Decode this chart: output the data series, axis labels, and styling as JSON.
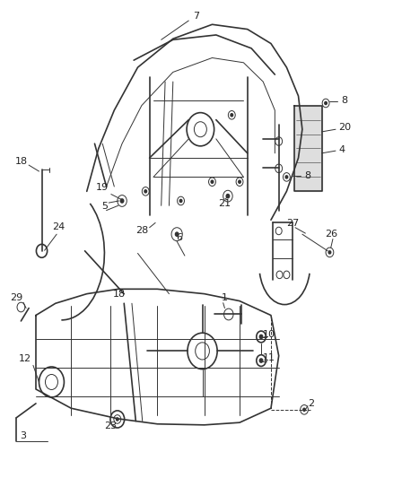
{
  "background_color": "#ffffff",
  "line_color": "#333333",
  "label_color": "#222222",
  "figsize": [
    4.38,
    5.33
  ],
  "dpi": 100
}
